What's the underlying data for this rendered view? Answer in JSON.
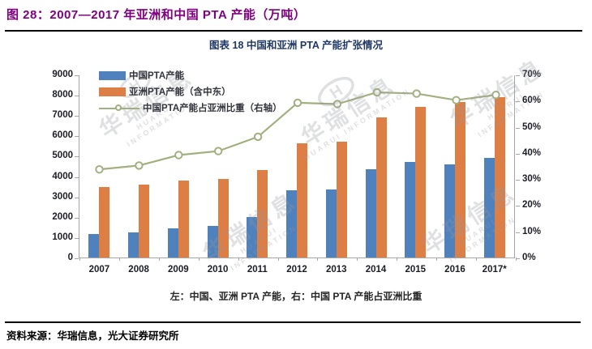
{
  "page": {
    "title": "图 28：2007—2017 年亚洲和中国 PTA 产能（万吨）",
    "source": "资料来源：华瑞信息，光大证券研究所"
  },
  "watermark": {
    "cn": "华瑞信息",
    "en": "HUARUI INFORMATION"
  },
  "colors": {
    "title": "#800080",
    "chart_title": "#1f3864",
    "china_bar": "#4f81bd",
    "asia_bar": "#dd7e45",
    "share_line": "#a2b080",
    "axis_line": "#a6a6a6",
    "label_text": "#1c1c26"
  },
  "chart_data": {
    "type": "bar",
    "subtype": "combo-bar-line",
    "title": "图表 18 中国和亚洲 PTA 产能扩张情况",
    "axis_note": "左：中国、亚洲 PTA 产能，右：中国 PTA 产能占亚洲比重",
    "unit": "万吨",
    "categories": [
      "2007",
      "2008",
      "2009",
      "2010",
      "2011",
      "2012",
      "2013",
      "2014",
      "2015",
      "2016",
      "2017*"
    ],
    "series": [
      {
        "name": "中国PTA产能",
        "type": "bar",
        "axis": "left",
        "values": [
          1150,
          1250,
          1450,
          1550,
          2000,
          3300,
          3350,
          4350,
          4700,
          4600,
          4900
        ]
      },
      {
        "name": "亚洲PTA产能（含中东）",
        "type": "bar",
        "axis": "left",
        "values": [
          3450,
          3600,
          3800,
          3850,
          4300,
          5600,
          5700,
          6900,
          7400,
          7650,
          7900
        ]
      },
      {
        "name": "中国PTA产能占亚洲比重（右轴）",
        "type": "line",
        "axis": "right",
        "unit": "%",
        "values": [
          34,
          35.5,
          39.5,
          41,
          46.5,
          59.5,
          59,
          63.5,
          63,
          60.5,
          62.5
        ]
      }
    ],
    "left_axis": {
      "min": 0,
      "max": 9000,
      "step": 1000,
      "tick_labels": [
        "0",
        "1000",
        "2000",
        "3000",
        "4000",
        "5000",
        "6000",
        "7000",
        "8000",
        "9000"
      ]
    },
    "right_axis": {
      "min": 0,
      "max": 70,
      "step": 10,
      "tick_labels": [
        "0%",
        "10%",
        "20%",
        "30%",
        "40%",
        "50%",
        "60%",
        "70%"
      ]
    },
    "grid": false,
    "legend_position": "inside-top-left"
  }
}
